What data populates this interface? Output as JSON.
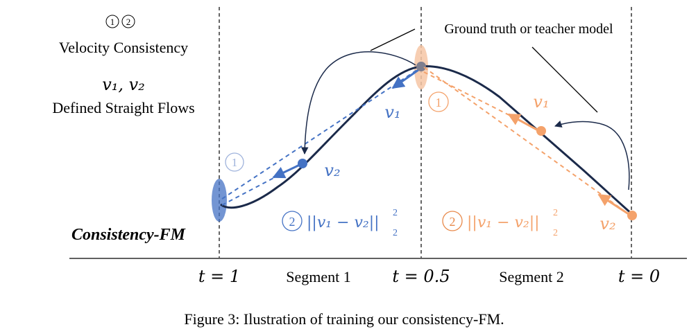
{
  "legend": {
    "markers": [
      "1",
      "2"
    ],
    "velocity_consistency": "Velocity Consistency",
    "v1v2": "v₁, v₂",
    "defined_straight_flows": "Defined Straight Flows",
    "method_name": "Consistency-FM"
  },
  "annotation": {
    "ground_truth": "Ground truth or teacher model"
  },
  "axis": {
    "t1": "t = 1",
    "segment1": "Segment 1",
    "t05": "t = 0.5",
    "segment2": "Segment 2",
    "t0": "t = 0"
  },
  "segment1": {
    "label_v1": "v₁",
    "label_v2": "v₂",
    "marker_1": "1",
    "marker_2": "2",
    "loss": "||v₁ − v₂||",
    "loss_sup": "2",
    "loss_sub": "2"
  },
  "segment2": {
    "label_v1": "v₁",
    "label_v2": "v₂",
    "marker_1": "1",
    "marker_2": "2",
    "loss": "||v₁ − v₂||",
    "loss_sup": "2",
    "loss_sub": "2"
  },
  "caption": "Figure 3: Ilustration of training our consistency-FM.",
  "colors": {
    "curve": "#1b2a4a",
    "blue": "#4472c4",
    "blue_light": "#9fb3dc",
    "orange": "#f4a26b",
    "orange_dark": "#e8894a",
    "orange_light": "#f6c5a4",
    "gray": "#7f7f8f"
  }
}
